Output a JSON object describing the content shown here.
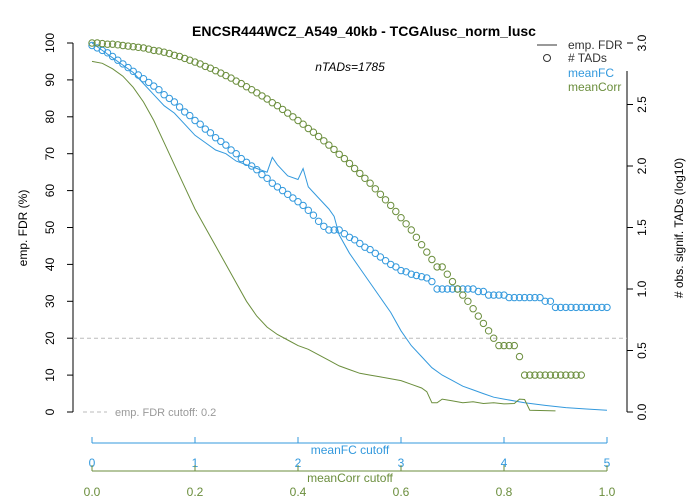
{
  "chart_data": {
    "type": "line",
    "title": "ENCSR444WCZ_A549_40kb - TCGAlusc_norm_lusc",
    "subtitle": "nTADs=1785",
    "ylabel_left": "emp. FDR (%)",
    "ylabel_right": "# obs. signif. TADs (log10)",
    "ylim_left": [
      0,
      100
    ],
    "ylim_right": [
      0,
      3.0
    ],
    "yticks_left": [
      "0",
      "10",
      "20",
      "30",
      "40",
      "50",
      "60",
      "70",
      "80",
      "90",
      "100"
    ],
    "yticks_right": [
      "0.0",
      "0.5",
      "1.0",
      "1.5",
      "2.0",
      "2.5",
      "3.0"
    ],
    "x_axis_meanFC": {
      "label": "meanFC cutoff",
      "range": [
        0,
        5
      ],
      "ticks": [
        "0",
        "1",
        "2",
        "3",
        "4",
        "5"
      ],
      "color": "#3399dd"
    },
    "x_axis_meanCorr": {
      "label": "meanCorr cutoff",
      "range": [
        0,
        1
      ],
      "ticks": [
        "0.0",
        "0.2",
        "0.4",
        "0.6",
        "0.8",
        "1.0"
      ],
      "color": "#6b8e3d"
    },
    "fdr_cutoff": {
      "value": 20,
      "label": "emp. FDR cutoff: 0.2"
    },
    "legend": {
      "position": "top-right",
      "entries": [
        {
          "label": "emp. FDR",
          "kind": "line",
          "color": "#333333"
        },
        {
          "label": "# TADs",
          "kind": "circle",
          "color": "#333333"
        },
        {
          "label": "meanFC",
          "kind": "text",
          "color": "#3399dd"
        },
        {
          "label": "meanCorr",
          "kind": "text",
          "color": "#6b8e3d"
        }
      ]
    },
    "series": [
      {
        "name": "meanFC",
        "axis": "meanFC",
        "color": "#3399dd",
        "fdr_line": [
          [
            0,
            100
          ],
          [
            0.1,
            98
          ],
          [
            0.2,
            96
          ],
          [
            0.3,
            94
          ],
          [
            0.4,
            92
          ],
          [
            0.5,
            89
          ],
          [
            0.6,
            86
          ],
          [
            0.7,
            83
          ],
          [
            0.8,
            81
          ],
          [
            0.9,
            78
          ],
          [
            1.0,
            75
          ],
          [
            1.1,
            73
          ],
          [
            1.2,
            71
          ],
          [
            1.3,
            70
          ],
          [
            1.4,
            68
          ],
          [
            1.5,
            67
          ],
          [
            1.6,
            66
          ],
          [
            1.7,
            65
          ],
          [
            1.75,
            69
          ],
          [
            1.8,
            67
          ],
          [
            1.9,
            64
          ],
          [
            2.0,
            63
          ],
          [
            2.05,
            66
          ],
          [
            2.1,
            61
          ],
          [
            2.2,
            58
          ],
          [
            2.3,
            55
          ],
          [
            2.35,
            53
          ],
          [
            2.4,
            48
          ],
          [
            2.5,
            43
          ],
          [
            2.6,
            39
          ],
          [
            2.7,
            35
          ],
          [
            2.8,
            31
          ],
          [
            2.9,
            27
          ],
          [
            3.0,
            22
          ],
          [
            3.1,
            18
          ],
          [
            3.2,
            15
          ],
          [
            3.3,
            12
          ],
          [
            3.4,
            10
          ],
          [
            3.5,
            8.5
          ],
          [
            3.6,
            7
          ],
          [
            3.7,
            6
          ],
          [
            3.8,
            5
          ],
          [
            3.9,
            4
          ],
          [
            4.0,
            3.5
          ],
          [
            4.2,
            2.5
          ],
          [
            4.4,
            1.8
          ],
          [
            4.6,
            1.2
          ],
          [
            4.8,
            0.8
          ],
          [
            5.0,
            0.5
          ]
        ],
        "tads_points": [
          [
            0.0,
            2.98
          ],
          [
            0.05,
            2.96
          ],
          [
            0.1,
            2.94
          ],
          [
            0.15,
            2.92
          ],
          [
            0.2,
            2.89
          ],
          [
            0.25,
            2.86
          ],
          [
            0.3,
            2.83
          ],
          [
            0.35,
            2.8
          ],
          [
            0.4,
            2.77
          ],
          [
            0.45,
            2.74
          ],
          [
            0.5,
            2.71
          ],
          [
            0.55,
            2.68
          ],
          [
            0.6,
            2.65
          ],
          [
            0.65,
            2.62
          ],
          [
            0.7,
            2.58
          ],
          [
            0.75,
            2.55
          ],
          [
            0.8,
            2.52
          ],
          [
            0.85,
            2.48
          ],
          [
            0.9,
            2.44
          ],
          [
            0.95,
            2.41
          ],
          [
            1.0,
            2.37
          ],
          [
            1.05,
            2.34
          ],
          [
            1.1,
            2.3
          ],
          [
            1.15,
            2.27
          ],
          [
            1.2,
            2.23
          ],
          [
            1.25,
            2.2
          ],
          [
            1.3,
            2.17
          ],
          [
            1.35,
            2.13
          ],
          [
            1.4,
            2.1
          ],
          [
            1.45,
            2.06
          ],
          [
            1.5,
            2.03
          ],
          [
            1.55,
            2.0
          ],
          [
            1.6,
            1.97
          ],
          [
            1.65,
            1.93
          ],
          [
            1.7,
            1.9
          ],
          [
            1.75,
            1.86
          ],
          [
            1.8,
            1.83
          ],
          [
            1.85,
            1.8
          ],
          [
            1.9,
            1.77
          ],
          [
            1.95,
            1.74
          ],
          [
            2.0,
            1.71
          ],
          [
            2.05,
            1.68
          ],
          [
            2.1,
            1.64
          ],
          [
            2.15,
            1.6
          ],
          [
            2.2,
            1.55
          ],
          [
            2.25,
            1.51
          ],
          [
            2.3,
            1.48
          ],
          [
            2.35,
            1.48
          ],
          [
            2.4,
            1.48
          ],
          [
            2.45,
            1.45
          ],
          [
            2.5,
            1.42
          ],
          [
            2.55,
            1.4
          ],
          [
            2.6,
            1.37
          ],
          [
            2.65,
            1.34
          ],
          [
            2.7,
            1.32
          ],
          [
            2.75,
            1.29
          ],
          [
            2.8,
            1.26
          ],
          [
            2.85,
            1.23
          ],
          [
            2.9,
            1.2
          ],
          [
            2.95,
            1.18
          ],
          [
            3.0,
            1.15
          ],
          [
            3.05,
            1.14
          ],
          [
            3.1,
            1.12
          ],
          [
            3.15,
            1.11
          ],
          [
            3.2,
            1.1
          ],
          [
            3.25,
            1.09
          ],
          [
            3.3,
            1.06
          ],
          [
            3.35,
            1.0
          ],
          [
            3.4,
            1.0
          ],
          [
            3.45,
            1.0
          ],
          [
            3.5,
            1.0
          ],
          [
            3.55,
            1.0
          ],
          [
            3.6,
            1.0
          ],
          [
            3.65,
            1.0
          ],
          [
            3.7,
            1.0
          ],
          [
            3.75,
            0.98
          ],
          [
            3.8,
            0.98
          ],
          [
            3.85,
            0.95
          ],
          [
            3.9,
            0.95
          ],
          [
            3.95,
            0.95
          ],
          [
            4.0,
            0.95
          ],
          [
            4.05,
            0.93
          ],
          [
            4.1,
            0.93
          ],
          [
            4.15,
            0.93
          ],
          [
            4.2,
            0.93
          ],
          [
            4.25,
            0.93
          ],
          [
            4.3,
            0.93
          ],
          [
            4.35,
            0.93
          ],
          [
            4.4,
            0.9
          ],
          [
            4.45,
            0.9
          ],
          [
            4.5,
            0.85
          ],
          [
            4.55,
            0.85
          ],
          [
            4.6,
            0.85
          ],
          [
            4.65,
            0.85
          ],
          [
            4.7,
            0.85
          ],
          [
            4.75,
            0.85
          ],
          [
            4.8,
            0.85
          ],
          [
            4.85,
            0.85
          ],
          [
            4.9,
            0.85
          ],
          [
            4.95,
            0.85
          ],
          [
            5.0,
            0.85
          ]
        ]
      },
      {
        "name": "meanCorr",
        "axis": "meanCorr",
        "color": "#6b8e3d",
        "fdr_line": [
          [
            0.0,
            95
          ],
          [
            0.02,
            94.5
          ],
          [
            0.04,
            93
          ],
          [
            0.06,
            91
          ],
          [
            0.08,
            88
          ],
          [
            0.1,
            84
          ],
          [
            0.12,
            79
          ],
          [
            0.14,
            73
          ],
          [
            0.16,
            67
          ],
          [
            0.18,
            61
          ],
          [
            0.2,
            55
          ],
          [
            0.22,
            50
          ],
          [
            0.24,
            45
          ],
          [
            0.26,
            40
          ],
          [
            0.28,
            35
          ],
          [
            0.3,
            30
          ],
          [
            0.32,
            26
          ],
          [
            0.34,
            23
          ],
          [
            0.36,
            21
          ],
          [
            0.38,
            19.5
          ],
          [
            0.4,
            18
          ],
          [
            0.42,
            17
          ],
          [
            0.44,
            15.5
          ],
          [
            0.46,
            14
          ],
          [
            0.48,
            12.5
          ],
          [
            0.5,
            11.5
          ],
          [
            0.52,
            10.5
          ],
          [
            0.54,
            10
          ],
          [
            0.56,
            9.5
          ],
          [
            0.58,
            9
          ],
          [
            0.6,
            8.5
          ],
          [
            0.62,
            7.5
          ],
          [
            0.64,
            6.5
          ],
          [
            0.65,
            5.5
          ],
          [
            0.66,
            2.5
          ],
          [
            0.67,
            2.5
          ],
          [
            0.68,
            3.5
          ],
          [
            0.7,
            3
          ],
          [
            0.72,
            2.5
          ],
          [
            0.74,
            2.8
          ],
          [
            0.76,
            2.3
          ],
          [
            0.78,
            2.5
          ],
          [
            0.8,
            2.2
          ],
          [
            0.82,
            2.3
          ],
          [
            0.83,
            3.5
          ],
          [
            0.84,
            3.4
          ],
          [
            0.85,
            0.5
          ],
          [
            0.9,
            0.3
          ]
        ],
        "tads_points": [
          [
            0.0,
            3.0
          ],
          [
            0.01,
            3.0
          ],
          [
            0.02,
            2.995
          ],
          [
            0.03,
            2.99
          ],
          [
            0.04,
            2.99
          ],
          [
            0.05,
            2.985
          ],
          [
            0.06,
            2.98
          ],
          [
            0.07,
            2.975
          ],
          [
            0.08,
            2.97
          ],
          [
            0.09,
            2.965
          ],
          [
            0.1,
            2.96
          ],
          [
            0.11,
            2.95
          ],
          [
            0.12,
            2.94
          ],
          [
            0.13,
            2.935
          ],
          [
            0.14,
            2.925
          ],
          [
            0.15,
            2.915
          ],
          [
            0.16,
            2.9
          ],
          [
            0.17,
            2.89
          ],
          [
            0.18,
            2.875
          ],
          [
            0.19,
            2.86
          ],
          [
            0.2,
            2.845
          ],
          [
            0.21,
            2.83
          ],
          [
            0.22,
            2.81
          ],
          [
            0.23,
            2.795
          ],
          [
            0.24,
            2.775
          ],
          [
            0.25,
            2.755
          ],
          [
            0.26,
            2.735
          ],
          [
            0.27,
            2.715
          ],
          [
            0.28,
            2.69
          ],
          [
            0.29,
            2.67
          ],
          [
            0.3,
            2.645
          ],
          [
            0.31,
            2.62
          ],
          [
            0.32,
            2.595
          ],
          [
            0.33,
            2.57
          ],
          [
            0.34,
            2.545
          ],
          [
            0.35,
            2.515
          ],
          [
            0.36,
            2.49
          ],
          [
            0.37,
            2.46
          ],
          [
            0.38,
            2.43
          ],
          [
            0.39,
            2.4
          ],
          [
            0.4,
            2.37
          ],
          [
            0.41,
            2.34
          ],
          [
            0.42,
            2.305
          ],
          [
            0.43,
            2.275
          ],
          [
            0.44,
            2.24
          ],
          [
            0.45,
            2.205
          ],
          [
            0.46,
            2.17
          ],
          [
            0.47,
            2.135
          ],
          [
            0.48,
            2.095
          ],
          [
            0.49,
            2.06
          ],
          [
            0.5,
            2.02
          ],
          [
            0.51,
            1.98
          ],
          [
            0.52,
            1.94
          ],
          [
            0.53,
            1.9
          ],
          [
            0.54,
            1.86
          ],
          [
            0.55,
            1.815
          ],
          [
            0.56,
            1.77
          ],
          [
            0.57,
            1.725
          ],
          [
            0.58,
            1.68
          ],
          [
            0.59,
            1.63
          ],
          [
            0.6,
            1.58
          ],
          [
            0.61,
            1.53
          ],
          [
            0.62,
            1.48
          ],
          [
            0.63,
            1.42
          ],
          [
            0.64,
            1.36
          ],
          [
            0.65,
            1.3
          ],
          [
            0.66,
            1.24
          ],
          [
            0.67,
            1.18
          ],
          [
            0.68,
            1.18
          ],
          [
            0.69,
            1.12
          ],
          [
            0.7,
            1.06
          ],
          [
            0.71,
            1.0
          ],
          [
            0.72,
            0.95
          ],
          [
            0.73,
            0.9
          ],
          [
            0.74,
            0.84
          ],
          [
            0.75,
            0.78
          ],
          [
            0.76,
            0.72
          ],
          [
            0.77,
            0.66
          ],
          [
            0.78,
            0.6
          ],
          [
            0.79,
            0.54
          ],
          [
            0.8,
            0.54
          ],
          [
            0.81,
            0.54
          ],
          [
            0.82,
            0.54
          ],
          [
            0.83,
            0.45
          ],
          [
            0.84,
            0.3
          ],
          [
            0.85,
            0.3
          ],
          [
            0.86,
            0.3
          ],
          [
            0.87,
            0.3
          ],
          [
            0.88,
            0.3
          ],
          [
            0.89,
            0.3
          ],
          [
            0.9,
            0.3
          ],
          [
            0.91,
            0.3
          ],
          [
            0.92,
            0.3
          ],
          [
            0.93,
            0.3
          ],
          [
            0.94,
            0.3
          ],
          [
            0.95,
            0.3
          ]
        ]
      }
    ]
  }
}
